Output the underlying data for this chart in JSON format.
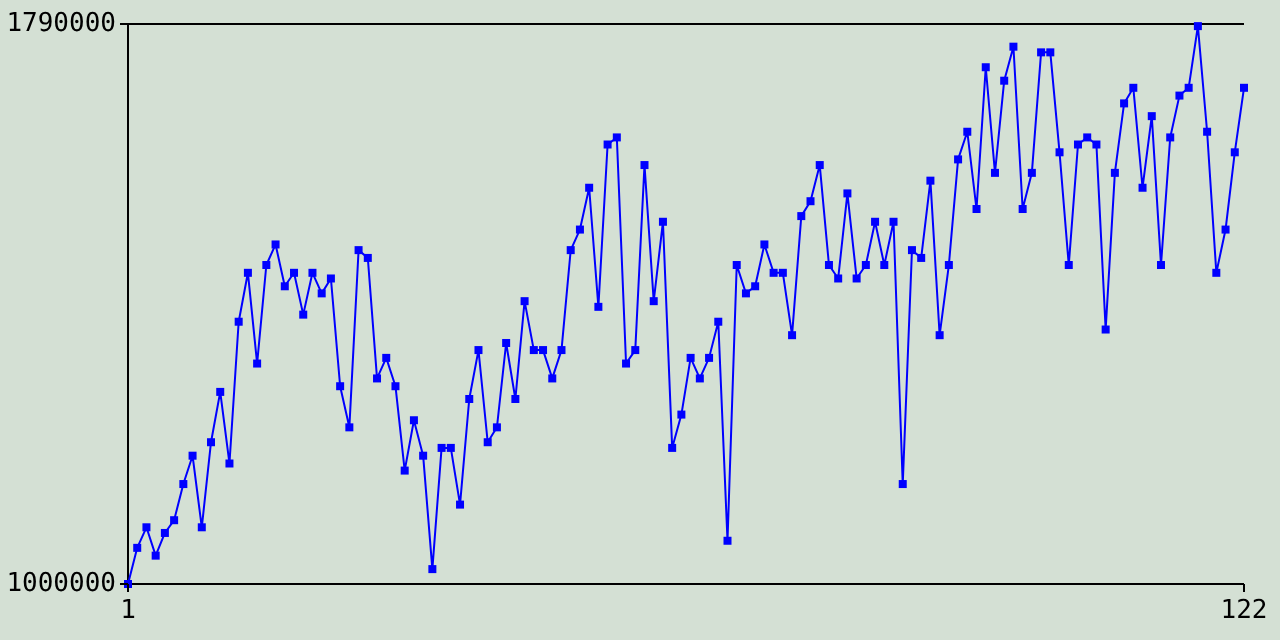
{
  "chart_data": {
    "type": "line",
    "x": [
      1,
      2,
      3,
      4,
      5,
      6,
      7,
      8,
      9,
      10,
      11,
      12,
      13,
      14,
      15,
      16,
      17,
      18,
      19,
      20,
      21,
      22,
      23,
      24,
      25,
      26,
      27,
      28,
      29,
      30,
      31,
      32,
      33,
      34,
      35,
      36,
      37,
      38,
      39,
      40,
      41,
      42,
      43,
      44,
      45,
      46,
      47,
      48,
      49,
      50,
      51,
      52,
      53,
      54,
      55,
      56,
      57,
      58,
      59,
      60,
      61,
      62,
      63,
      64,
      65,
      66,
      67,
      68,
      69,
      70,
      71,
      72,
      73,
      74,
      75,
      76,
      77,
      78,
      79,
      80,
      81,
      82,
      83,
      84,
      85,
      86,
      87,
      88,
      89,
      90,
      91,
      92,
      93,
      94,
      95,
      96,
      97,
      98,
      99,
      100,
      101,
      102,
      103,
      104,
      105,
      106,
      107,
      108,
      109,
      110,
      111,
      112,
      113,
      114,
      115,
      116,
      117,
      118,
      119,
      120,
      121,
      122
    ],
    "series": [
      {
        "color": "#0000ff",
        "values": [
          1000000,
          1051000,
          1080000,
          1040000,
          1072000,
          1090000,
          1141000,
          1181000,
          1080000,
          1200000,
          1271000,
          1170000,
          1370000,
          1439000,
          1311000,
          1450000,
          1479000,
          1420000,
          1439000,
          1380000,
          1439000,
          1410000,
          1431000,
          1279000,
          1221000,
          1471000,
          1460000,
          1290000,
          1319000,
          1279000,
          1160000,
          1231000,
          1181000,
          1021000,
          1192000,
          1192000,
          1112000,
          1261000,
          1330000,
          1200000,
          1221000,
          1340000,
          1261000,
          1399000,
          1330000,
          1330000,
          1290000,
          1330000,
          1471000,
          1500000,
          1559000,
          1391000,
          1620000,
          1630000,
          1311000,
          1330000,
          1591000,
          1399000,
          1511000,
          1192000,
          1239000,
          1319000,
          1290000,
          1319000,
          1370000,
          1061000,
          1450000,
          1410000,
          1420000,
          1479000,
          1439000,
          1439000,
          1351000,
          1519000,
          1540000,
          1591000,
          1450000,
          1431000,
          1551000,
          1431000,
          1450000,
          1511000,
          1450000,
          1511000,
          1141000,
          1471000,
          1460000,
          1569000,
          1351000,
          1450000,
          1599000,
          1638000,
          1529000,
          1729000,
          1580000,
          1710000,
          1758000,
          1529000,
          1580000,
          1750000,
          1750000,
          1609000,
          1450000,
          1620000,
          1630000,
          1620000,
          1359000,
          1580000,
          1678000,
          1700000,
          1559000,
          1660000,
          1450000,
          1630000,
          1689000,
          1700000,
          1787000,
          1638000,
          1439000,
          1500000,
          1609000,
          1700000
        ]
      }
    ],
    "xlim": [
      1,
      122
    ],
    "xticks": [
      1,
      122
    ],
    "ylim": [
      1000000,
      1790000
    ],
    "yticks": [
      1000000,
      1790000
    ],
    "marker": "square",
    "line_style": "solid"
  }
}
